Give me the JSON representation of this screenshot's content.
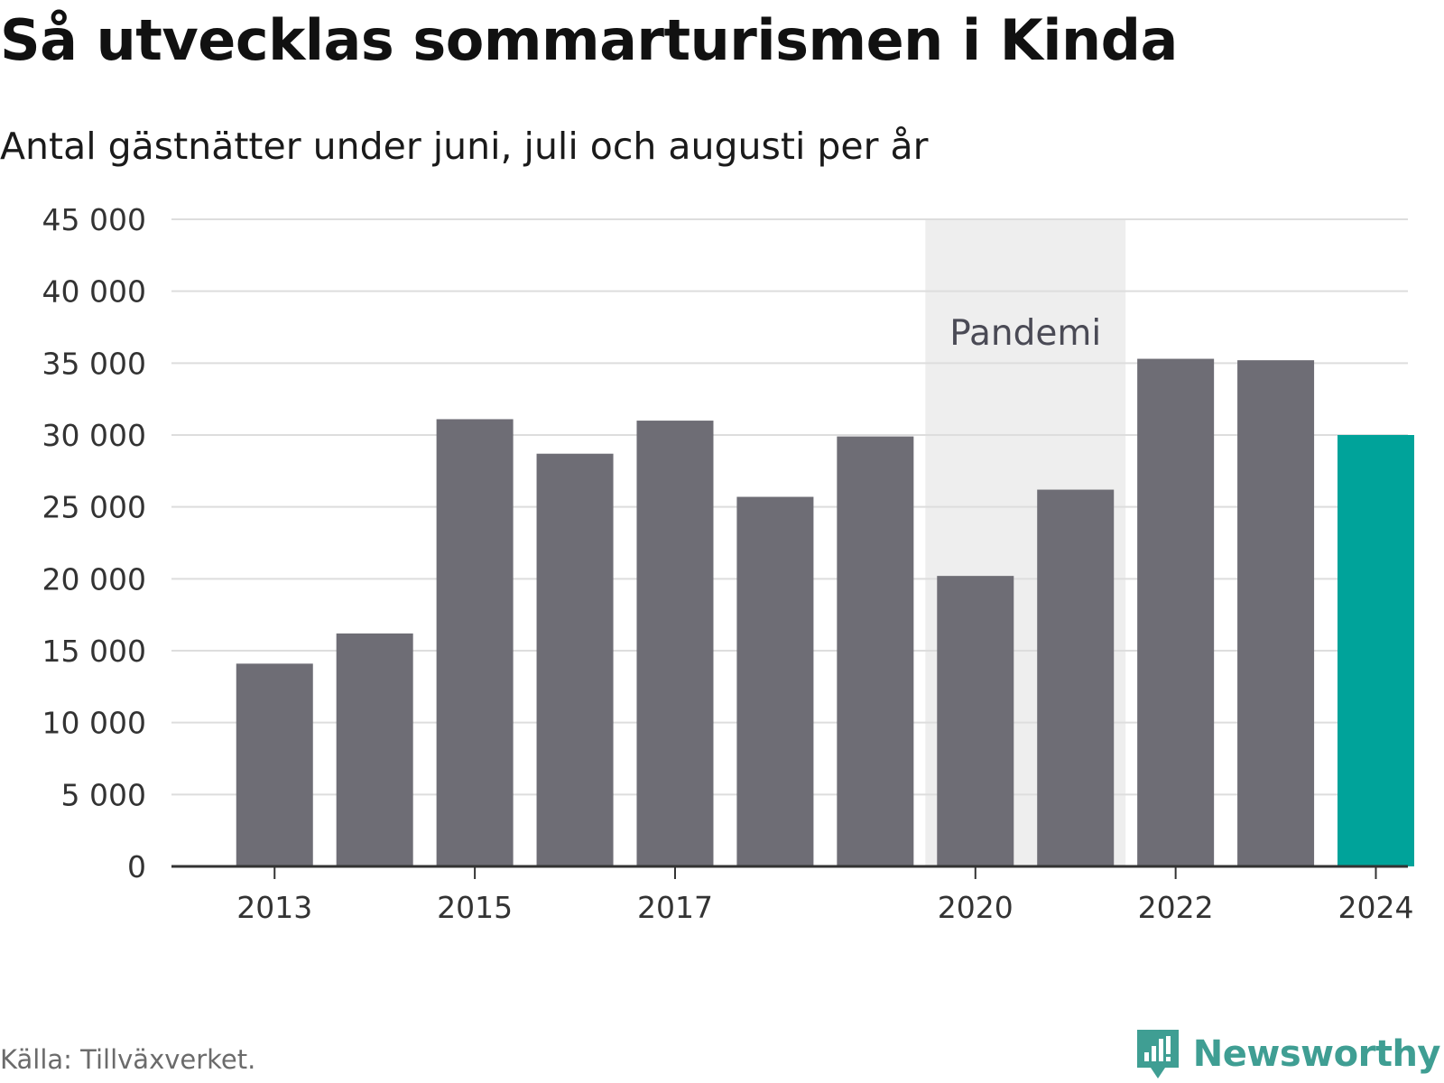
{
  "title": "Så utvecklas sommarturismen i Kinda",
  "subtitle": "Antal gästnätter under juni, juli och augusti per år",
  "source": "Källa: Tillväxverket.",
  "brand": "Newsworthy",
  "colors": {
    "bar": "#6e6d75",
    "highlight": "#00a39a",
    "band": "#eeeeee",
    "grid": "#dddddd",
    "axis": "#333333",
    "brand": "#3f9e93"
  },
  "chart_data": {
    "type": "bar",
    "title": "Så utvecklas sommarturismen i Kinda",
    "subtitle": "Antal gästnätter under juni, juli och augusti per år",
    "categories": [
      "2013",
      "2014",
      "2015",
      "2016",
      "2017",
      "2018",
      "2019",
      "2020",
      "2021",
      "2022",
      "2023",
      "2024"
    ],
    "values": [
      14100,
      16200,
      31100,
      28700,
      31000,
      25700,
      29900,
      20200,
      26200,
      35300,
      35200,
      30000
    ],
    "highlight_index": 11,
    "x_tick_labels": [
      "2013",
      "2015",
      "2017",
      "2020",
      "2022",
      "2024"
    ],
    "y_ticks": [
      0,
      5000,
      10000,
      15000,
      20000,
      25000,
      30000,
      35000,
      40000,
      45000
    ],
    "y_tick_labels": [
      "0",
      "5 000",
      "10 000",
      "15 000",
      "20 000",
      "25 000",
      "30 000",
      "35 000",
      "40 000",
      "45 000"
    ],
    "ylim": [
      0,
      45000
    ],
    "xlabel": "",
    "ylabel": "",
    "grid": true,
    "legend": "none",
    "annotation": {
      "label": "Pandemi",
      "from": "2020",
      "to": "2021"
    }
  }
}
